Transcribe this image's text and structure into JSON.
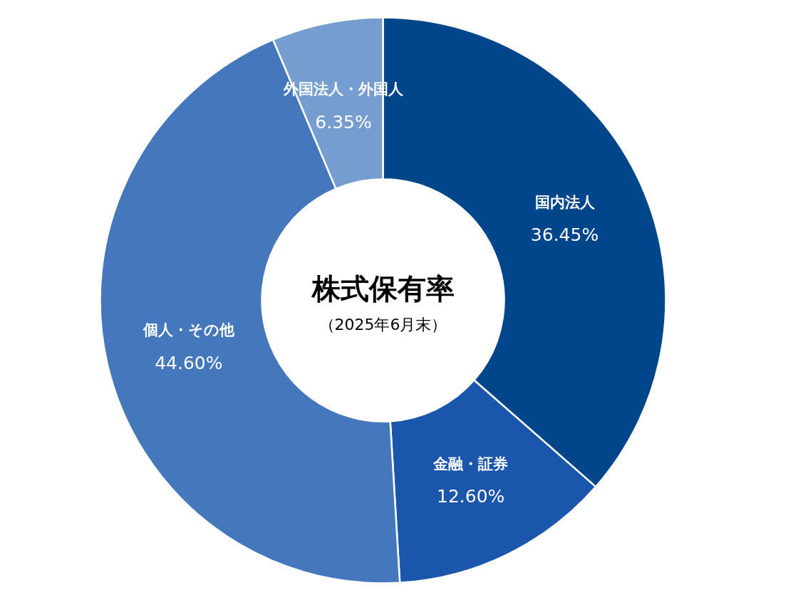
{
  "chart_data": {
    "type": "donut",
    "title": "株式保有率",
    "subtitle": "（2025年6月末）",
    "categories": [
      "国内法人",
      "金融・証券",
      "個人・その他",
      "外国法人・外国人"
    ],
    "values": [
      36.45,
      12.6,
      44.6,
      6.35
    ],
    "value_labels": [
      "36.45%",
      "12.60%",
      "44.60%",
      "6.35%"
    ],
    "colors": [
      "#00468b",
      "#1a56ab",
      "#4477bb",
      "#759dd0"
    ]
  }
}
